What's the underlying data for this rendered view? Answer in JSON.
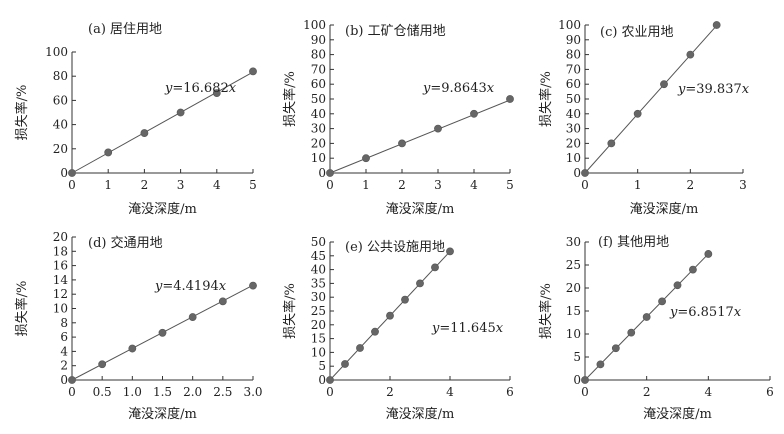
{
  "chart_data": [
    {
      "type": "scatter",
      "title": "(a) 居住用地",
      "xlabel": "淹没深度/m",
      "ylabel": "损失率/%",
      "xlim": [
        0,
        5
      ],
      "ylim": [
        0,
        100
      ],
      "xticks": [
        0,
        1,
        2,
        3,
        4,
        5
      ],
      "yticks": [
        0,
        20,
        40,
        60,
        80,
        100
      ],
      "x": [
        0,
        1,
        2,
        3,
        4,
        5
      ],
      "y": [
        0,
        17,
        33,
        50,
        66,
        84
      ],
      "trendline": {
        "slope": 16.682,
        "equation_prefix": "y",
        "equation_suffix": "=16.682x"
      },
      "grid": false
    },
    {
      "type": "scatter",
      "title": "(b) 工矿仓储用地",
      "xlabel": "淹没深度/m",
      "ylabel": "损失率/%",
      "xlim": [
        0,
        5
      ],
      "ylim": [
        0,
        100
      ],
      "xticks": [
        0,
        1,
        2,
        3,
        4,
        5
      ],
      "yticks": [
        0,
        10,
        20,
        30,
        40,
        50,
        60,
        70,
        80,
        90,
        100
      ],
      "x": [
        0,
        1,
        2,
        3,
        4,
        5
      ],
      "y": [
        0,
        10,
        20,
        30,
        40,
        50
      ],
      "trendline": {
        "slope": 9.8643,
        "equation_prefix": "y",
        "equation_suffix": "=9.8643x"
      },
      "grid": false
    },
    {
      "type": "scatter",
      "title": "(c) 农业用地",
      "xlabel": "淹没深度/m",
      "ylabel": "损失率/%",
      "xlim": [
        0,
        3
      ],
      "ylim": [
        0,
        100
      ],
      "xticks": [
        0,
        1,
        2,
        3
      ],
      "yticks": [
        0,
        10,
        20,
        30,
        40,
        50,
        60,
        70,
        80,
        90,
        100
      ],
      "x": [
        0,
        0.5,
        1,
        1.5,
        2,
        2.5
      ],
      "y": [
        0,
        20,
        40,
        60,
        80,
        100
      ],
      "trendline": {
        "slope": 39.837,
        "equation_prefix": "y",
        "equation_suffix": "=39.837x"
      },
      "grid": false
    },
    {
      "type": "scatter",
      "title": "(d) 交通用地",
      "xlabel": "淹没深度/m",
      "ylabel": "损失率/%",
      "xlim": [
        0,
        3
      ],
      "ylim": [
        0,
        20
      ],
      "xticks": [
        0,
        0.5,
        1.0,
        1.5,
        2.0,
        2.5,
        3.0
      ],
      "xtick_labels": [
        "0",
        "0.5",
        "1.0",
        "1.5",
        "2.0",
        "2.5",
        "3.0"
      ],
      "yticks": [
        0,
        2,
        4,
        6,
        8,
        10,
        12,
        14,
        16,
        18,
        20
      ],
      "x": [
        0,
        0.5,
        1.0,
        1.5,
        2.0,
        2.5,
        3.0
      ],
      "y": [
        0,
        2.2,
        4.4,
        6.6,
        8.8,
        11,
        13.2
      ],
      "trendline": {
        "slope": 4.4194,
        "equation_prefix": "y",
        "equation_suffix": "=4.4194x"
      },
      "grid": false
    },
    {
      "type": "scatter",
      "title": "(e) 公共设施用地",
      "xlabel": "淹没深度/m",
      "ylabel": "损失率/%",
      "xlim": [
        0,
        6
      ],
      "ylim": [
        0,
        50
      ],
      "xticks": [
        0,
        2,
        4,
        6
      ],
      "yticks": [
        0,
        5,
        10,
        15,
        20,
        25,
        30,
        35,
        40,
        45,
        50
      ],
      "x": [
        0,
        0.5,
        1,
        1.5,
        2,
        2.5,
        3,
        3.5,
        4
      ],
      "y": [
        0,
        5.8,
        11.6,
        17.5,
        23.3,
        29.1,
        35,
        40.8,
        46.6
      ],
      "trendline": {
        "slope": 11.645,
        "equation_prefix": "y",
        "equation_suffix": "=11.645x"
      },
      "grid": false
    },
    {
      "type": "scatter",
      "title": "(f) 其他用地",
      "xlabel": "淹没深度/m",
      "ylabel": "损失率/%",
      "xlim": [
        0,
        6
      ],
      "ylim": [
        0,
        30
      ],
      "xticks": [
        0,
        2,
        4,
        6
      ],
      "yticks": [
        0,
        5,
        10,
        15,
        20,
        25,
        30
      ],
      "x": [
        0,
        0.5,
        1,
        1.5,
        2,
        2.5,
        3,
        3.5,
        4
      ],
      "y": [
        0,
        3.4,
        6.9,
        10.3,
        13.7,
        17.1,
        20.6,
        24,
        27.4
      ],
      "trendline": {
        "slope": 6.8517,
        "equation_prefix": "y",
        "equation_suffix": "=6.8517x"
      },
      "grid": false
    }
  ]
}
